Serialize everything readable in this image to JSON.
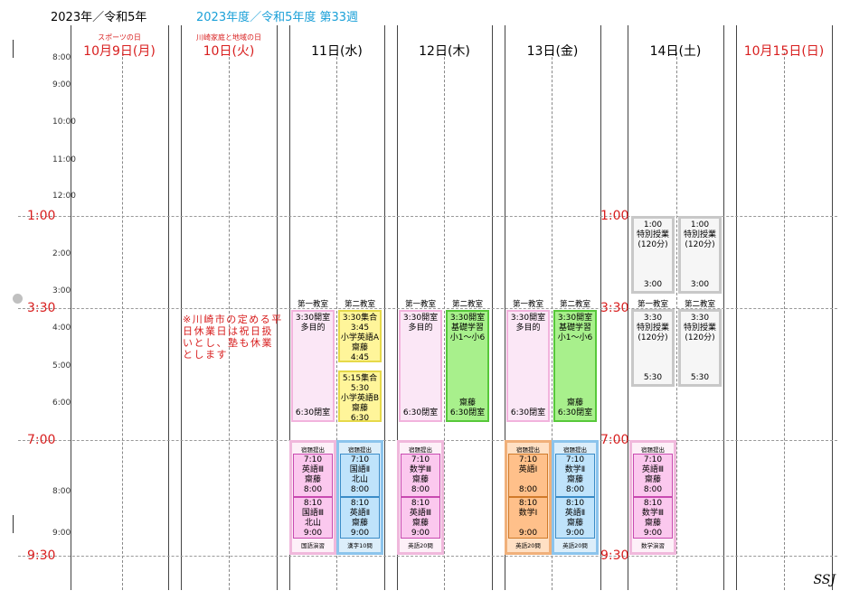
{
  "header": {
    "year": "2023年／令和5年",
    "week": "2023年度／令和5年度  第33週"
  },
  "days": [
    {
      "date": "10月9日(月)",
      "holiday": "スポーツの日"
    },
    {
      "date": "10日(火)",
      "holiday": "川崎家庭と地域の日"
    },
    {
      "date": "11日(水)"
    },
    {
      "date": "12日(木)"
    },
    {
      "date": "13日(金)"
    },
    {
      "date": "14日(土)"
    },
    {
      "date": "10月15日(日)"
    }
  ],
  "hours": [
    "8:00",
    "9:00",
    "10:00",
    "11:00",
    "12:00",
    "2:00",
    "3:00",
    "4:00",
    "5:00",
    "6:00",
    "8:00",
    "9:00"
  ],
  "marks": {
    "m1": "1:00",
    "m330": "3:30",
    "m7": "7:00",
    "m930": "9:30"
  },
  "rooms": {
    "r1": "第一教室",
    "r2": "第二教室"
  },
  "note": "※川崎市の定める平日休業日は祝日扱いとし、塾も休業とします",
  "blocks": {
    "wed_r1": [
      "3:30開室",
      "多目的",
      "6:30閉室"
    ],
    "wed_r2a": [
      "3:30集合",
      "3:45",
      "小学英語A",
      "齋藤",
      "4:45"
    ],
    "wed_r2b": [
      "5:15集合",
      "5:30",
      "小学英語B",
      "齋藤",
      "6:30"
    ],
    "thu_r1": [
      "3:30開室",
      "多目的",
      "6:30閉室"
    ],
    "thu_r2": [
      "3:30開室",
      "基礎学習",
      "小1～小6",
      "齋藤",
      "6:30閉室"
    ],
    "fri_r1": [
      "3:30開室",
      "多目的",
      "6:30閉室"
    ],
    "fri_r2": [
      "3:30開室",
      "基礎学習",
      "小1～小6",
      "齋藤",
      "6:30閉室"
    ],
    "sat_a1": [
      "1:00",
      "特別授業",
      "(120分)",
      "3:00"
    ],
    "sat_a2": [
      "1:00",
      "特別授業",
      "(120分)",
      "3:00"
    ],
    "sat_b1": [
      "3:30",
      "特別授業",
      "(120分)",
      "5:30"
    ],
    "sat_b2": [
      "3:30",
      "特別授業",
      "(120分)",
      "5:30"
    ]
  },
  "evening": {
    "hw_submit": "宿題提出",
    "wed1": {
      "c1": [
        "7:10",
        "英語Ⅲ",
        "齋藤",
        "8:00"
      ],
      "c2": [
        "8:10",
        "国語Ⅲ",
        "北山",
        "9:00"
      ],
      "foot": "国語演習"
    },
    "wed2": {
      "c1": [
        "7:10",
        "国語Ⅱ",
        "北山",
        "8:00"
      ],
      "c2": [
        "8:10",
        "英語Ⅱ",
        "齋藤",
        "9:00"
      ],
      "foot": "漢字10問"
    },
    "thu1": {
      "c1": [
        "7:10",
        "数学Ⅲ",
        "齋藤",
        "8:00"
      ],
      "c2": [
        "8:10",
        "英語Ⅲ",
        "齋藤",
        "9:00"
      ],
      "foot": "英語20問"
    },
    "fri1": {
      "c1": [
        "7:10",
        "英語Ⅰ",
        "",
        "8:00"
      ],
      "c2": [
        "8:10",
        "数学Ⅰ",
        "",
        "9:00"
      ],
      "foot": "英語20問"
    },
    "fri2": {
      "c1": [
        "7:10",
        "数学Ⅱ",
        "齋藤",
        "8:00"
      ],
      "c2": [
        "8:10",
        "英語Ⅱ",
        "齋藤",
        "9:00"
      ],
      "foot": "英語20問"
    },
    "sat1": {
      "c1": [
        "7:10",
        "英語Ⅲ",
        "齋藤",
        "8:00"
      ],
      "c2": [
        "8:10",
        "数学Ⅲ",
        "齋藤",
        "9:00"
      ],
      "foot": "数学演習"
    }
  },
  "footer": {
    "signature": "SSJ"
  }
}
